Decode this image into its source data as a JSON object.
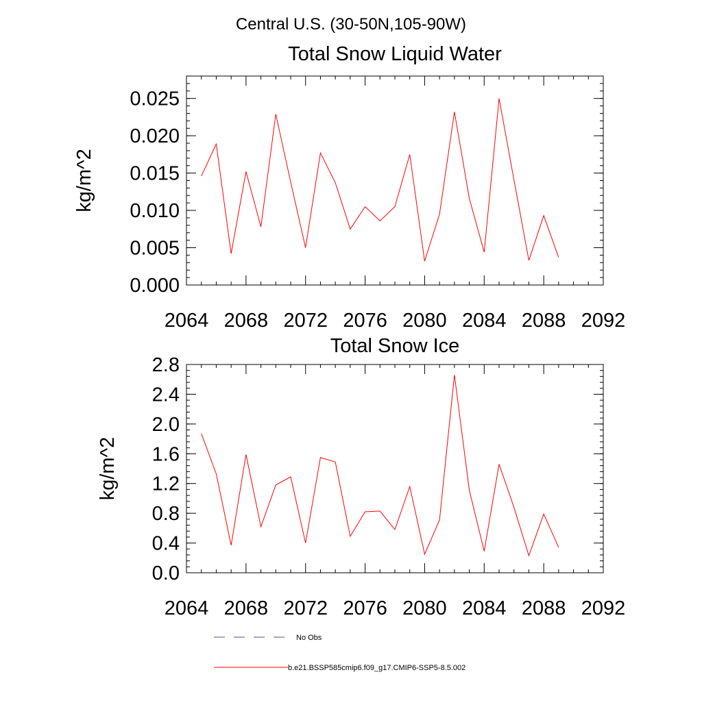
{
  "figure": {
    "suptitle": "Central U.S. (30-50N,105-90W)"
  },
  "chart_data": [
    {
      "type": "line",
      "title": "Total Snow Liquid Water",
      "xlabel": "",
      "ylabel": "kg/m^2",
      "xlim": [
        2064,
        2092
      ],
      "ylim": [
        0,
        0.028
      ],
      "x_ticks": [
        2064,
        2068,
        2072,
        2076,
        2080,
        2084,
        2088,
        2092
      ],
      "x_tick_labels": [
        "2064",
        "2068",
        "2072",
        "2076",
        "2080",
        "2084",
        "2088",
        "2092"
      ],
      "y_ticks": [
        0,
        0.005,
        0.01,
        0.015,
        0.02,
        0.025
      ],
      "y_tick_labels": [
        "0.000",
        "0.005",
        "0.010",
        "0.015",
        "0.020",
        "0.025"
      ],
      "series": [
        {
          "name": "b.e21.BSSP585cmip6.f09_g17.CMIP6-SSP5-8.5.002",
          "color": "#ff0000",
          "x": [
            2065,
            2066,
            2067,
            2068,
            2069,
            2070,
            2071,
            2072,
            2073,
            2074,
            2075,
            2076,
            2077,
            2078,
            2079,
            2080,
            2081,
            2082,
            2083,
            2084,
            2085,
            2086,
            2087,
            2088,
            2089
          ],
          "y": [
            0.0146,
            0.0189,
            0.0042,
            0.0152,
            0.0078,
            0.0229,
            0.0138,
            0.005,
            0.0177,
            0.0137,
            0.0075,
            0.0105,
            0.0086,
            0.0105,
            0.0175,
            0.0032,
            0.0095,
            0.0232,
            0.0116,
            0.0044,
            0.025,
            0.0141,
            0.0033,
            0.0093,
            0.0037
          ]
        }
      ]
    },
    {
      "type": "line",
      "title": "Total Snow Ice",
      "xlabel": "",
      "ylabel": "kg/m^2",
      "xlim": [
        2064,
        2092
      ],
      "ylim": [
        0,
        2.8
      ],
      "x_ticks": [
        2064,
        2068,
        2072,
        2076,
        2080,
        2084,
        2088,
        2092
      ],
      "x_tick_labels": [
        "2064",
        "2068",
        "2072",
        "2076",
        "2080",
        "2084",
        "2088",
        "2092"
      ],
      "y_ticks": [
        0,
        0.4,
        0.8,
        1.2,
        1.6,
        2.0,
        2.4,
        2.8
      ],
      "y_tick_labels": [
        "0.0",
        "0.4",
        "0.8",
        "1.2",
        "1.6",
        "2.0",
        "2.4",
        "2.8"
      ],
      "series": [
        {
          "name": "b.e21.BSSP585cmip6.f09_g17.CMIP6-SSP5-8.5.002",
          "color": "#ff0000",
          "x": [
            2065,
            2066,
            2067,
            2068,
            2069,
            2070,
            2071,
            2072,
            2073,
            2074,
            2075,
            2076,
            2077,
            2078,
            2079,
            2080,
            2081,
            2082,
            2083,
            2084,
            2085,
            2086,
            2087,
            2088,
            2089
          ],
          "y": [
            1.87,
            1.33,
            0.37,
            1.59,
            0.62,
            1.18,
            1.29,
            0.4,
            1.55,
            1.49,
            0.49,
            0.82,
            0.83,
            0.58,
            1.16,
            0.25,
            0.71,
            2.66,
            1.11,
            0.29,
            1.46,
            0.88,
            0.23,
            0.79,
            0.34
          ]
        }
      ]
    }
  ],
  "legend": {
    "items": [
      {
        "label": "No Obs",
        "style": "dashed",
        "color": "#4a4f8a"
      },
      {
        "label": "b.e21.BSSP585cmip6.f09_g17.CMIP6-SSP5-8.5.002",
        "style": "solid",
        "color": "#ff0000"
      }
    ]
  }
}
